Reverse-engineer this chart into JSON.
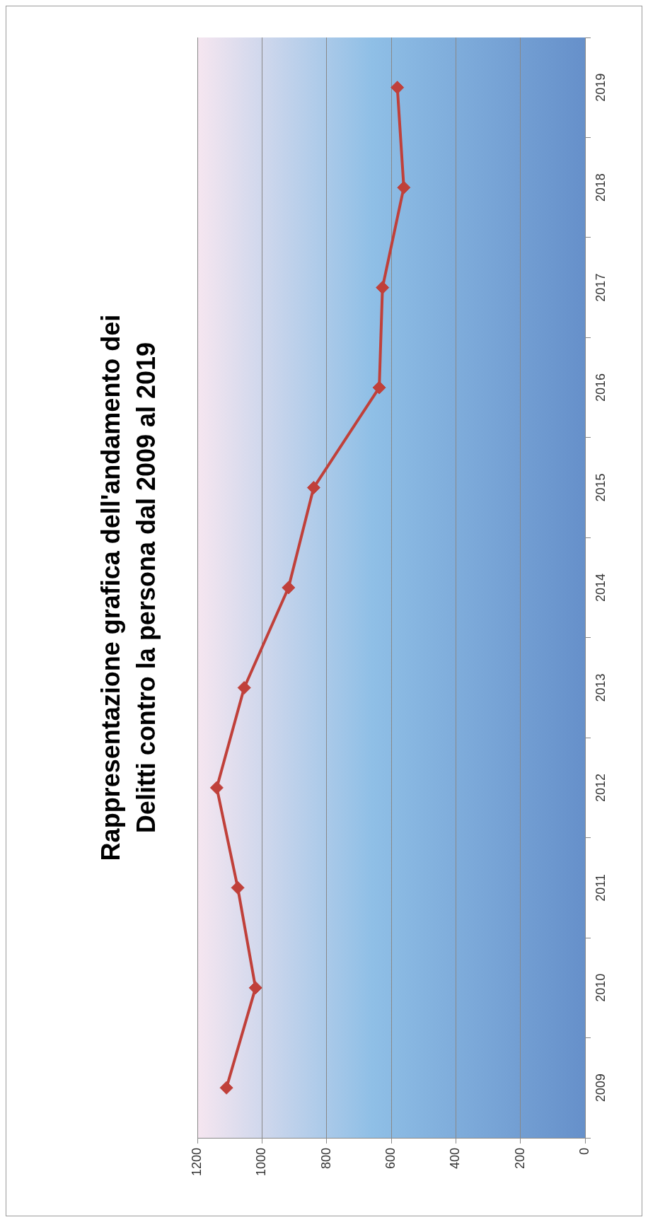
{
  "chart_data": {
    "type": "line",
    "title": "Rappresentazione grafica dell'andamento dei Delitti contro la persona dal 2009 al 2019",
    "orientation": "horizontal",
    "categories": [
      "2019",
      "2018",
      "2017",
      "2016",
      "2015",
      "2014",
      "2013",
      "2012",
      "2011",
      "2010",
      "2009"
    ],
    "series": [
      {
        "color": "#c0403a",
        "values": [
          581,
          561,
          627,
          637,
          840,
          918,
          1055,
          1140,
          1075,
          1020,
          1110
        ]
      }
    ],
    "xlim": [
      1200,
      0
    ],
    "xticks": [
      0,
      200,
      400,
      600,
      800,
      1000,
      1200
    ],
    "grid": "x",
    "legend": false,
    "marker": "diamond",
    "line_style": "solid"
  }
}
